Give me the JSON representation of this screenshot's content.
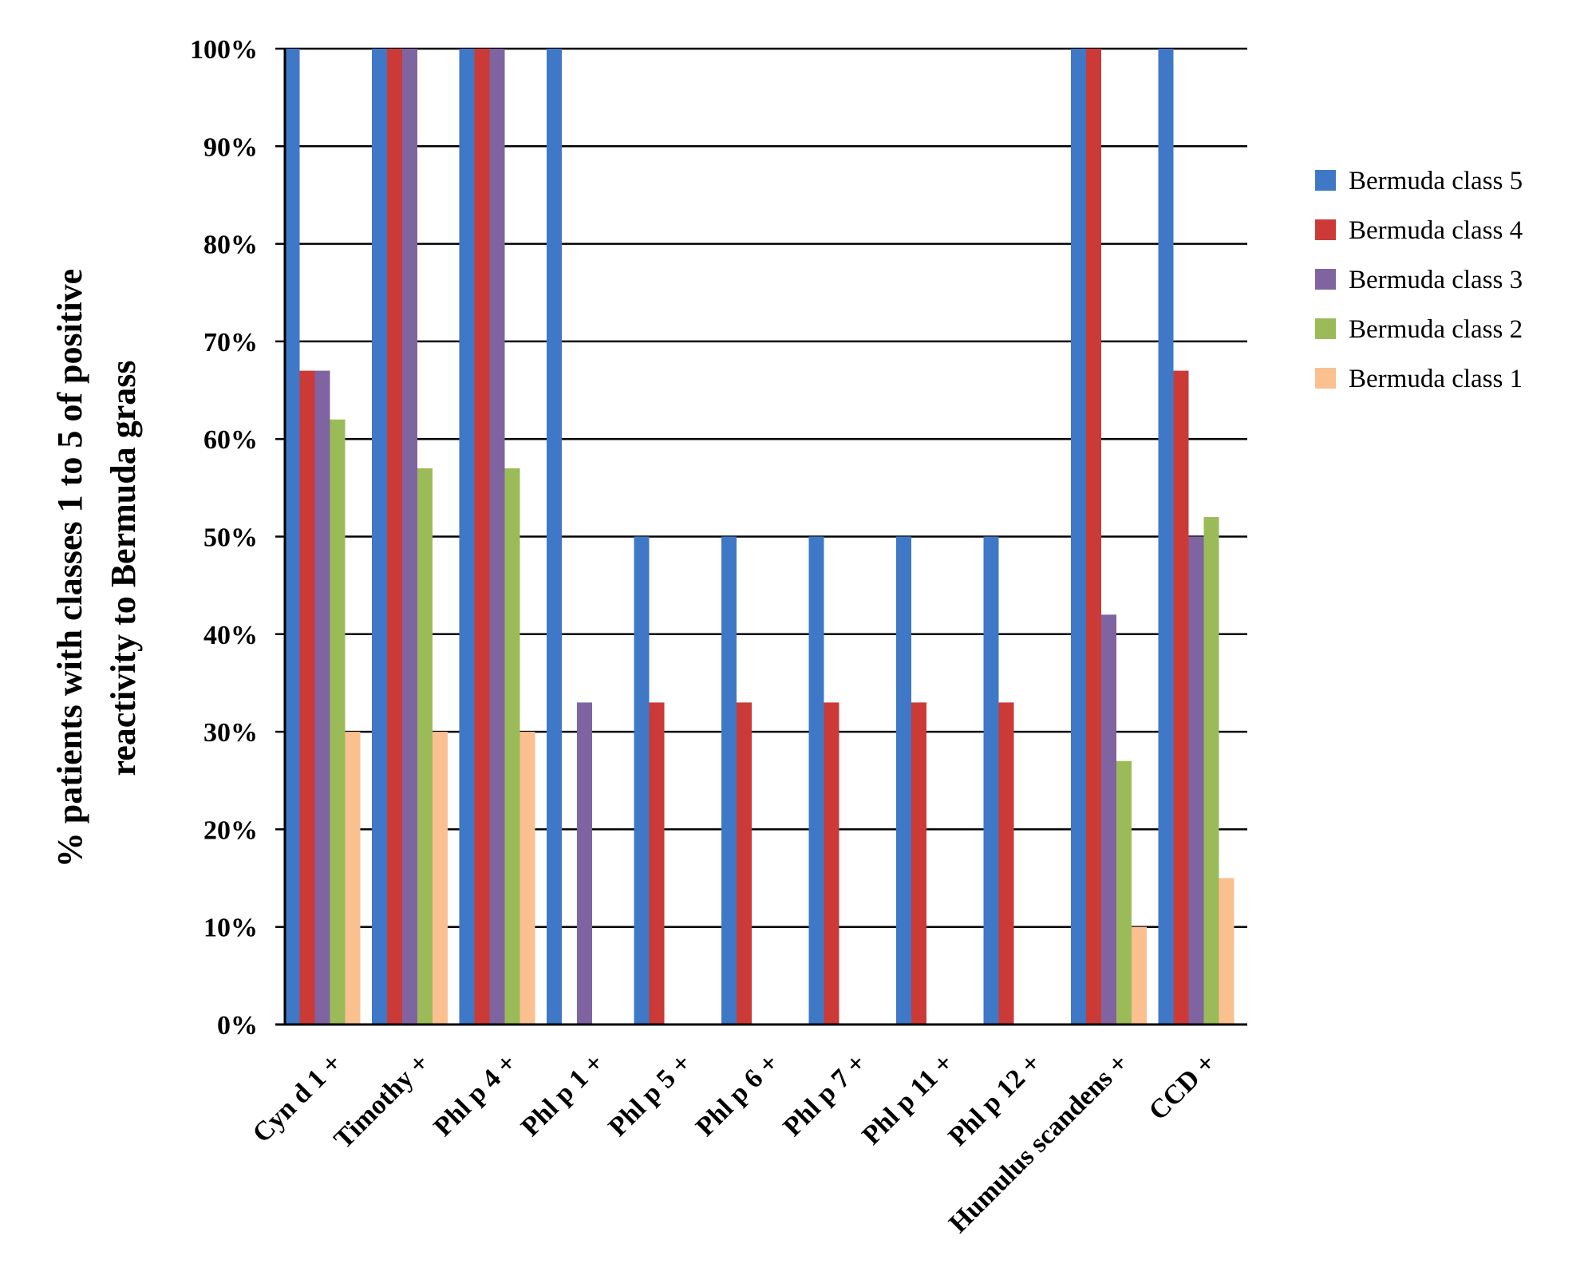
{
  "chart_data": {
    "type": "bar",
    "categories": [
      "Cyn d 1 +",
      "Timothy +",
      "Phl p 4 +",
      "Phl p 1 +",
      "Phl p 5 +",
      "Phl p 6 +",
      "Phl p 7 +",
      "Phl p 11 +",
      "Phl p 12 +",
      "Humulus scandens +",
      "CCD +"
    ],
    "series": [
      {
        "name": "Bermuda class 5",
        "color": "#3f78c6",
        "values": [
          100,
          100,
          100,
          100,
          50,
          50,
          50,
          50,
          50,
          100,
          100
        ]
      },
      {
        "name": "Bermuda class 4",
        "color": "#cc3a37",
        "values": [
          67,
          100,
          100,
          0,
          33,
          33,
          33,
          33,
          33,
          100,
          67
        ]
      },
      {
        "name": "Bermuda class 3",
        "color": "#8064a2",
        "values": [
          67,
          100,
          100,
          33,
          0,
          0,
          0,
          0,
          0,
          42,
          50
        ]
      },
      {
        "name": "Bermuda class 2",
        "color": "#9bbb59",
        "values": [
          62,
          57,
          57,
          0,
          0,
          0,
          0,
          0,
          0,
          27,
          52
        ]
      },
      {
        "name": "Bermuda class 1",
        "color": "#fac090",
        "values": [
          30,
          30,
          30,
          0,
          0,
          0,
          0,
          0,
          0,
          10,
          15
        ]
      }
    ],
    "ylabel_lines": [
      "% patients with classes 1 to 5 of positive",
      "reactivity to Bermuda grass"
    ],
    "yticks": [
      "0%",
      "10%",
      "20%",
      "30%",
      "40%",
      "50%",
      "60%",
      "70%",
      "80%",
      "90%",
      "100%"
    ],
    "ylim": [
      0,
      100
    ],
    "grid": true,
    "legend": "right"
  }
}
